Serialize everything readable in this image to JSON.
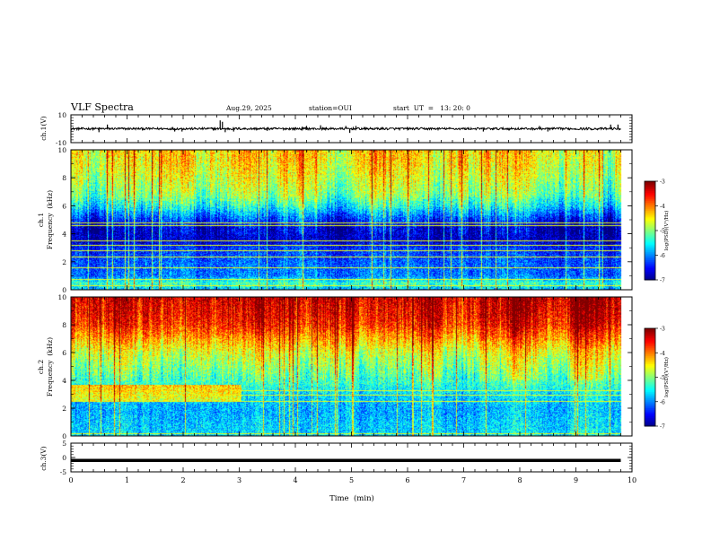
{
  "header": {
    "title": "VLF Spectra",
    "date": "Aug.29, 2025",
    "station": "station=OUI",
    "start": "start  UT  =   13: 20: 0"
  },
  "chart_data": [
    {
      "type": "line",
      "name": "ch1-waveform",
      "ylabel": "ch.1(V)",
      "ylim": [
        -10,
        10
      ],
      "yticks": [
        10,
        -10
      ],
      "xlim": [
        0,
        10
      ],
      "baseline": 0,
      "trace_end_min": 9.8,
      "spikes": [
        {
          "t": 0.5,
          "v": -2.5
        },
        {
          "t": 0.65,
          "v": 3
        },
        {
          "t": 1.85,
          "v": -2
        },
        {
          "t": 1.98,
          "v": -2
        },
        {
          "t": 2.66,
          "v": 6
        },
        {
          "t": 2.7,
          "v": 5
        },
        {
          "t": 2.75,
          "v": -2.5
        },
        {
          "t": 2.9,
          "v": -2
        },
        {
          "t": 3.5,
          "v": -1.5
        },
        {
          "t": 4.2,
          "v": 2
        },
        {
          "t": 4.45,
          "v": 2.5
        },
        {
          "t": 4.9,
          "v": 2
        },
        {
          "t": 5.08,
          "v": 2
        },
        {
          "t": 4.97,
          "v": -3
        },
        {
          "t": 7.35,
          "v": -2
        },
        {
          "t": 8.35,
          "v": 2
        },
        {
          "t": 8.5,
          "v": -2
        },
        {
          "t": 9.62,
          "v": 3
        },
        {
          "t": 9.75,
          "v": 3
        }
      ]
    },
    {
      "type": "heatmap",
      "name": "ch1-spectrogram",
      "ylabel": "ch.1\nFrequency  (kHz)",
      "ylim": [
        0,
        10
      ],
      "yticks": [
        0,
        2,
        4,
        6,
        8,
        10
      ],
      "xlim": [
        0,
        10
      ],
      "data_end_min": 9.8,
      "color_range": [
        -7,
        -3
      ],
      "colorbar_ticks": [
        -3,
        -4,
        -5,
        -6,
        -7
      ],
      "colorbar_label": "log(PSD)(V²/Hz)",
      "profile": [
        {
          "f": 0.0,
          "v": -5.8
        },
        {
          "f": 0.5,
          "v": -5.2
        },
        {
          "f": 1.0,
          "v": -6.0
        },
        {
          "f": 2.0,
          "v": -6.1
        },
        {
          "f": 3.0,
          "v": -6.3
        },
        {
          "f": 3.6,
          "v": -6.7
        },
        {
          "f": 4.5,
          "v": -6.6
        },
        {
          "f": 5.2,
          "v": -6.1
        },
        {
          "f": 6.0,
          "v": -5.4
        },
        {
          "f": 6.8,
          "v": -4.9
        },
        {
          "f": 8.0,
          "v": -4.6
        },
        {
          "f": 9.0,
          "v": -4.4
        },
        {
          "f": 10.0,
          "v": -4.3
        }
      ],
      "lines_khz": [
        0.3,
        0.8,
        1.6,
        2.4,
        2.8,
        3.2,
        3.5,
        4.6,
        4.8
      ]
    },
    {
      "type": "heatmap",
      "name": "ch2-spectrogram",
      "ylabel": "ch.2\nFrequency  (kHz)",
      "ylim": [
        0,
        10
      ],
      "yticks": [
        0,
        2,
        4,
        6,
        8,
        10
      ],
      "xlim": [
        0,
        10
      ],
      "data_end_min": 9.8,
      "color_range": [
        -7,
        -3
      ],
      "colorbar_ticks": [
        -3,
        -4,
        -5,
        -6,
        -7
      ],
      "colorbar_label": "log(PSD)(V²/Hz)",
      "profile": [
        {
          "f": 0.0,
          "v": -5.6
        },
        {
          "f": 1.0,
          "v": -5.7
        },
        {
          "f": 2.0,
          "v": -5.8
        },
        {
          "f": 3.0,
          "v": -5.6
        },
        {
          "f": 4.0,
          "v": -5.2
        },
        {
          "f": 5.0,
          "v": -4.9
        },
        {
          "f": 6.0,
          "v": -4.6
        },
        {
          "f": 7.0,
          "v": -4.1
        },
        {
          "f": 8.0,
          "v": -3.6
        },
        {
          "f": 9.0,
          "v": -3.4
        },
        {
          "f": 10.0,
          "v": -3.3
        }
      ],
      "lines_khz": [
        0.2,
        2.5,
        3.0,
        3.3
      ]
    },
    {
      "type": "line",
      "name": "ch3-signal",
      "ylabel": "ch.3(V)",
      "ylim": [
        -5,
        5
      ],
      "yticks": [
        5,
        0,
        -5
      ],
      "xlim": [
        0,
        10
      ],
      "level": -1.0,
      "trace_end_min": 9.8,
      "xlabel": "Time  (min)",
      "xticks": [
        0,
        1,
        2,
        3,
        4,
        5,
        6,
        7,
        8,
        9,
        10
      ]
    }
  ]
}
